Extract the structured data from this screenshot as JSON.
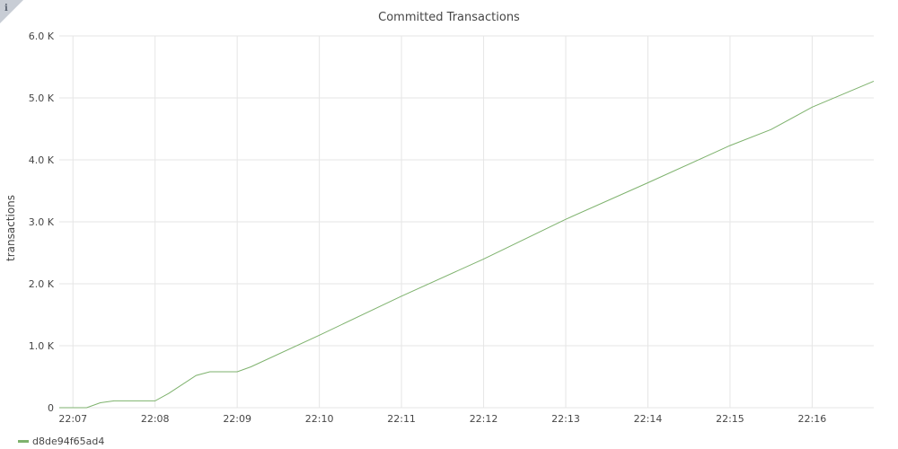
{
  "panel": {
    "info_glyph": "i"
  },
  "colors": {
    "series": "#7eb26d",
    "grid": "#e6e6e6",
    "text": "#464646",
    "info_corner": "#c8cdd5"
  },
  "chart_data": {
    "type": "line",
    "title": "Committed Transactions",
    "ylabel": "transactions",
    "xlabel": "",
    "x_ticks": [
      "22:07",
      "22:08",
      "22:09",
      "22:10",
      "22:11",
      "22:12",
      "22:13",
      "22:14",
      "22:15",
      "22:16"
    ],
    "y_ticks": [
      {
        "value": 0,
        "label": "0"
      },
      {
        "value": 1000,
        "label": "1.0 K"
      },
      {
        "value": 2000,
        "label": "2.0 K"
      },
      {
        "value": 3000,
        "label": "3.0 K"
      },
      {
        "value": 4000,
        "label": "4.0 K"
      },
      {
        "value": 5000,
        "label": "5.0 K"
      },
      {
        "value": 6000,
        "label": "6.0 K"
      }
    ],
    "x_range": [
      "22:06:50",
      "22:16:45"
    ],
    "ylim": [
      0,
      6000
    ],
    "grid": true,
    "legend": "bottom-left",
    "series": [
      {
        "name": "d8de94f65ad4",
        "x": [
          "22:06:50",
          "22:07:10",
          "22:07:20",
          "22:07:30",
          "22:07:40",
          "22:08:00",
          "22:08:10",
          "22:08:30",
          "22:08:40",
          "22:09:00",
          "22:09:10",
          "22:10:00",
          "22:11:00",
          "22:12:00",
          "22:13:00",
          "22:14:00",
          "22:15:00",
          "22:15:30",
          "22:16:00",
          "22:16:45"
        ],
        "values": [
          0,
          0,
          80,
          110,
          110,
          110,
          230,
          520,
          580,
          580,
          660,
          1170,
          1800,
          2400,
          3040,
          3630,
          4230,
          4490,
          4850,
          5270
        ]
      }
    ]
  }
}
